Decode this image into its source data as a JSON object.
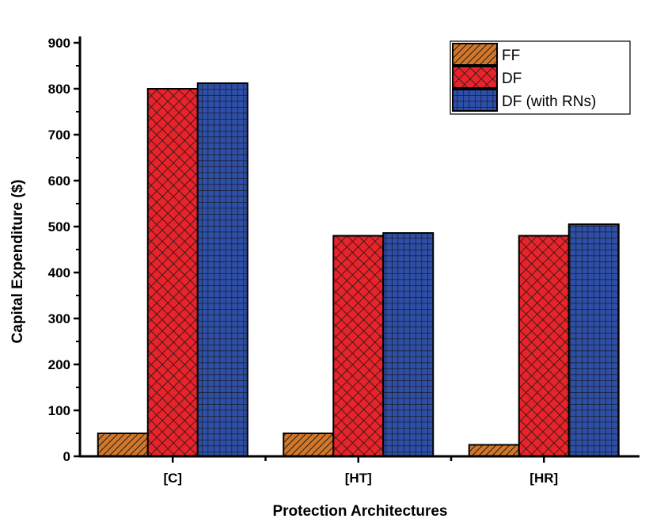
{
  "chart_data": {
    "type": "bar",
    "title": "",
    "xlabel": "Protection Architectures",
    "ylabel": "Capital Expenditure ($)",
    "categories": [
      "[C]",
      "[HT]",
      "[HR]"
    ],
    "ylim": [
      0,
      900
    ],
    "yticks": [
      0,
      100,
      200,
      300,
      400,
      500,
      600,
      700,
      800,
      900
    ],
    "grid": false,
    "legend_position": "top-right",
    "series": [
      {
        "name": "FF",
        "values": [
          50,
          50,
          25
        ],
        "color": "#d2772a",
        "pattern": "diagonal-hatch"
      },
      {
        "name": "DF",
        "values": [
          800,
          480,
          480
        ],
        "color": "#e8232a",
        "pattern": "crosshatch"
      },
      {
        "name": "DF (with RNs)",
        "values": [
          812,
          486,
          505
        ],
        "color": "#2e4fa8",
        "pattern": "grid"
      }
    ]
  }
}
